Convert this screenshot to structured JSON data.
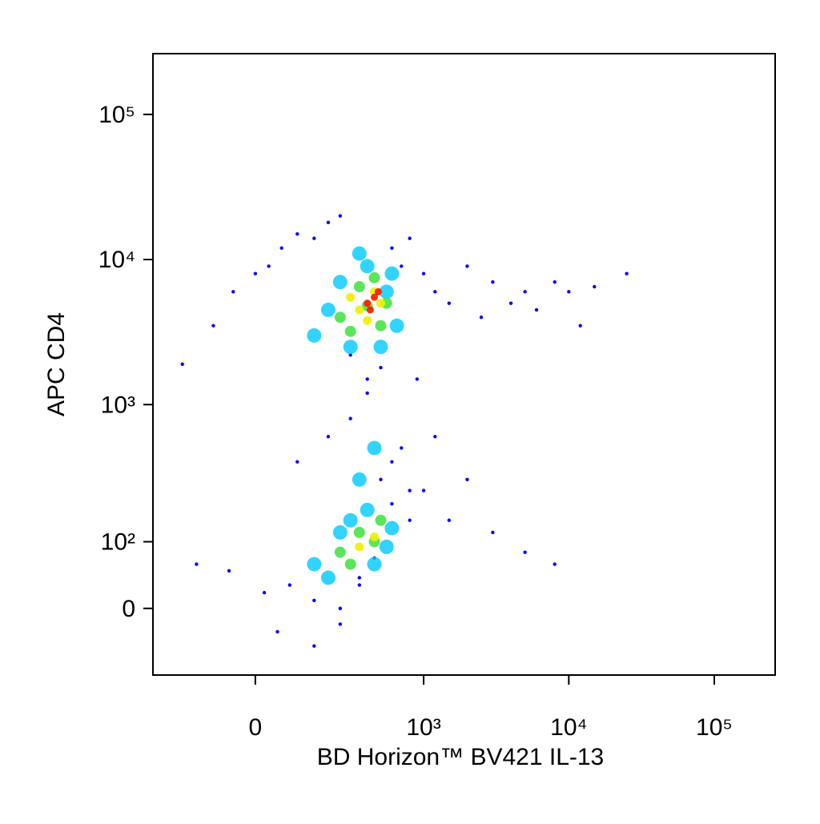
{
  "chart_data": {
    "type": "scatter",
    "x_label": "BD Horizon™ BV421 IL-13",
    "y_label": "APC CD4",
    "scale": "biexponential",
    "xlim": [
      -340,
      262144
    ],
    "ylim": [
      -100,
      262144
    ],
    "xticks": [
      0,
      {
        "value": 1000,
        "label": "10³"
      },
      {
        "value": 10000,
        "label": "10⁴"
      },
      {
        "value": 100000,
        "label": "10⁵"
      }
    ],
    "yticks": [
      0,
      {
        "value": 100,
        "label": "10²"
      },
      {
        "value": 1000,
        "label": "10³"
      },
      {
        "value": 10000,
        "label": "10⁴"
      },
      {
        "value": 100000,
        "label": "10⁵"
      }
    ],
    "series": [
      {
        "color": "#0000ff",
        "x": [
          -200,
          -100,
          -50,
          0,
          30,
          60,
          100,
          150,
          200,
          250,
          300,
          400,
          500,
          600,
          700,
          800,
          1000,
          1200,
          1500,
          2000,
          2500,
          3000,
          4000,
          5000,
          6000,
          8000,
          10000,
          12000,
          15000,
          25000,
          -150,
          -60,
          20,
          80,
          150,
          250,
          350,
          450,
          600,
          800,
          1000,
          1500,
          2000,
          3000,
          5000,
          8000,
          100,
          200,
          300,
          400,
          500,
          700,
          900,
          50,
          150,
          250,
          350,
          600,
          800,
          1200
        ],
        "y": [
          1900,
          3500,
          6000,
          8000,
          9000,
          12000,
          15000,
          14000,
          18000,
          20000,
          2200,
          1500,
          1800,
          12000,
          9000,
          14000,
          8000,
          6000,
          5000,
          9000,
          4000,
          7000,
          5000,
          6000,
          4500,
          7000,
          6000,
          3500,
          6500,
          8000,
          60,
          50,
          20,
          30,
          10,
          0,
          40,
          70,
          200,
          150,
          250,
          150,
          300,
          120,
          80,
          60,
          400,
          600,
          800,
          1200,
          300,
          500,
          1500,
          -30,
          -50,
          -20,
          30,
          400,
          250,
          600
        ]
      },
      {
        "color": "#00c8ff",
        "x": [
          150,
          250,
          400,
          550,
          650,
          200,
          300,
          500,
          600,
          350,
          150,
          250,
          400,
          550,
          200,
          300,
          450,
          600,
          350,
          450
        ],
        "y": [
          3000,
          7000,
          9000,
          6000,
          3500,
          4500,
          2500,
          2500,
          8000,
          11000,
          60,
          120,
          180,
          90,
          40,
          150,
          60,
          130,
          300,
          500
        ]
      },
      {
        "color": "#40e040",
        "x": [
          250,
          350,
          450,
          550,
          300,
          500,
          400,
          250,
          350,
          450,
          300,
          500
        ],
        "y": [
          4000,
          6500,
          7500,
          5000,
          3200,
          3500,
          4800,
          80,
          120,
          100,
          60,
          150
        ]
      },
      {
        "color": "#f0f000",
        "x": [
          350,
          450,
          400,
          500,
          300,
          350,
          450
        ],
        "y": [
          4500,
          6000,
          3800,
          5000,
          5500,
          90,
          110
        ]
      },
      {
        "color": "#ff2000",
        "x": [
          400,
          450,
          420,
          480
        ],
        "y": [
          5000,
          5500,
          4500,
          6000
        ]
      }
    ]
  }
}
